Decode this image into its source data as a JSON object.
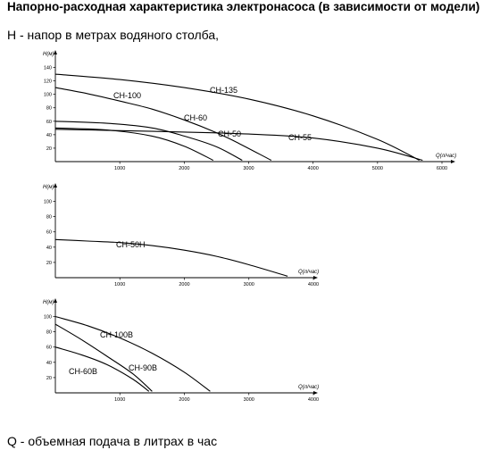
{
  "heading": "Напорно-расходная характеристика электронасоса (в зависимости от модели)",
  "subheading": "H - напор в метрах водяного столба,",
  "footer": "Q - объемная подача в литрах в час",
  "chart_data": [
    {
      "type": "line",
      "ylabel": "H(м)",
      "xlabel": "Q(л/час)",
      "xlim": [
        0,
        6000
      ],
      "ylim": [
        0,
        150
      ],
      "x_ticks": [
        1000,
        2000,
        3000,
        4000,
        5000,
        6000
      ],
      "y_ticks": [
        20,
        40,
        60,
        80,
        100,
        120,
        140
      ],
      "grid": false,
      "series": [
        {
          "name": "CH-135",
          "x": [
            0,
            1000,
            2000,
            3000,
            4000,
            5000,
            5650
          ],
          "y": [
            130,
            122,
            110,
            93,
            68,
            33,
            2
          ]
        },
        {
          "name": "CH-100",
          "x": [
            0,
            500,
            1000,
            1500,
            2000,
            2500,
            2850,
            3350
          ],
          "y": [
            110,
            101,
            90,
            78,
            62,
            43,
            27,
            2
          ]
        },
        {
          "name": "CH-60",
          "x": [
            0,
            800,
            1500,
            2000,
            2500,
            2900
          ],
          "y": [
            60,
            57,
            50,
            38,
            22,
            2
          ]
        },
        {
          "name": "CH-50",
          "x": [
            0,
            800,
            1500,
            2000,
            2450
          ],
          "y": [
            50,
            47,
            38,
            23,
            2
          ]
        },
        {
          "name": "CH-55",
          "x": [
            0,
            1000,
            2000,
            3000,
            4000,
            5000,
            5700
          ],
          "y": [
            48,
            46,
            44,
            41,
            35,
            20,
            2
          ]
        }
      ]
    },
    {
      "type": "line",
      "ylabel": "H(м)",
      "xlabel": "Q(л/час)",
      "xlim": [
        0,
        4000
      ],
      "ylim": [
        0,
        110
      ],
      "x_ticks": [
        1000,
        2000,
        3000,
        4000
      ],
      "y_ticks": [
        20,
        40,
        60,
        80,
        100
      ],
      "grid": false,
      "series": [
        {
          "name": "CH-50H",
          "x": [
            0,
            500,
            1000,
            1500,
            2000,
            2500,
            3000,
            3600
          ],
          "y": [
            50,
            48,
            46,
            42,
            36,
            28,
            17,
            2
          ]
        }
      ]
    },
    {
      "type": "line",
      "ylabel": "H(м)",
      "xlabel": "Q(л/час)",
      "xlim": [
        0,
        4000
      ],
      "ylim": [
        0,
        110
      ],
      "x_ticks": [
        1000,
        2000,
        3000,
        4000
      ],
      "y_ticks": [
        20,
        40,
        60,
        80,
        100
      ],
      "grid": false,
      "series": [
        {
          "name": "CH-100B",
          "x": [
            0,
            500,
            1000,
            1500,
            2000,
            2400
          ],
          "y": [
            100,
            88,
            72,
            52,
            27,
            2
          ]
        },
        {
          "name": "CH-90B",
          "x": [
            0,
            400,
            800,
            1200,
            1500
          ],
          "y": [
            90,
            70,
            48,
            25,
            2
          ]
        },
        {
          "name": "CH-60B",
          "x": [
            0,
            400,
            800,
            1200,
            1450
          ],
          "y": [
            60,
            50,
            37,
            18,
            2
          ]
        }
      ]
    }
  ]
}
